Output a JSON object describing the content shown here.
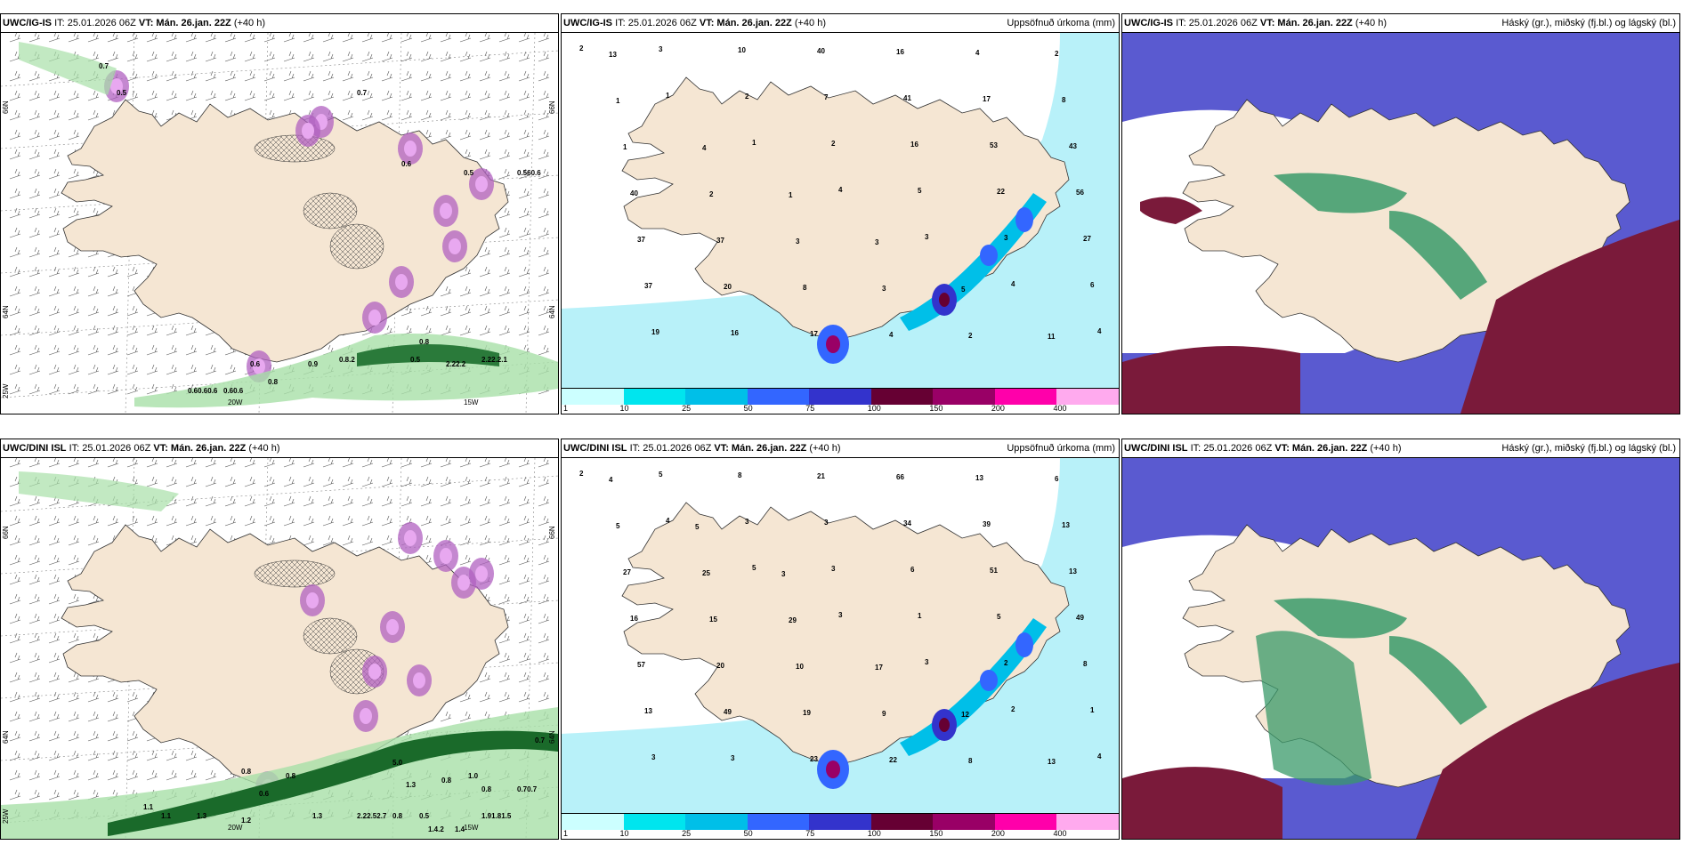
{
  "rows": [
    {
      "model": "UWC/IG-IS",
      "it": "IT: 25.01.2026 06Z",
      "vt": "VT: Mán. 26.jan. 22Z",
      "lead": "(+40 h)",
      "precip_title": "Uppsöfnuð úrkoma (mm)",
      "cloud_title": "Háský (gr.), miðský (fj.bl.) og lágský (bl.)",
      "lon_labels": [
        "20W",
        "15W"
      ],
      "lat_labels": [
        "66N",
        "64N",
        "25W",
        "66N",
        "64N"
      ],
      "wind_numbers": [
        "0.7",
        "0.5",
        "0.7",
        "0.6",
        "0.5",
        "0.60.6",
        "0.9",
        "0.8",
        "0.60.60.6",
        "0.8",
        "0.5",
        "2.22.2",
        "0.6",
        "2.22.2.1",
        "0.8.2",
        "0.560.6"
      ],
      "precip_numbers": [
        "2",
        "1",
        "1",
        "4",
        "3",
        "4",
        "4",
        "3",
        "2",
        "2",
        "5",
        "3",
        "6",
        "19",
        "10",
        "7",
        "16",
        "22",
        "27",
        "37",
        "16",
        "40",
        "41",
        "53",
        "56",
        "37",
        "20",
        "17",
        "16",
        "17",
        "43",
        "40",
        "37",
        "8",
        "4",
        "4",
        "8",
        "1",
        "2",
        "3",
        "3",
        "2",
        "2",
        "1",
        "4",
        "1",
        "3",
        "5",
        "11",
        "13"
      ]
    },
    {
      "model": "UWC/DINI ISL",
      "it": "IT: 25.01.2026 06Z",
      "vt": "VT: Mán. 26.jan. 22Z",
      "lead": "(+40 h)",
      "precip_title": "Uppsöfnuð úrkoma (mm)",
      "cloud_title": "Háský (gr.), miðský (fj.bl.) og lágský (bl.)",
      "lon_labels": [
        "20W",
        "15W"
      ],
      "lat_labels": [
        "66N",
        "64N",
        "25W",
        "66N",
        "64N"
      ],
      "wind_numbers": [
        "0.8",
        "0.6",
        "0.7",
        "5.0",
        "1.3",
        "1.1",
        "0.8",
        "0.8",
        "1.0",
        "0.8",
        "0.70.7",
        "1.1",
        "1.3",
        "1.2",
        "1.3",
        "2.22.52.7",
        "0.8",
        "0.5",
        "1.91.81.5",
        "1.4.2",
        "1.4"
      ],
      "precip_numbers": [
        "2",
        "4",
        "5",
        "3",
        "3",
        "2",
        "4",
        "5",
        "3",
        "3",
        "1",
        "2",
        "1",
        "3",
        "8",
        "3",
        "6",
        "5",
        "8",
        "13",
        "3",
        "21",
        "34",
        "51",
        "49",
        "57",
        "49",
        "23",
        "66",
        "39",
        "13",
        "16",
        "20",
        "19",
        "22",
        "13",
        "13",
        "27",
        "15",
        "10",
        "9",
        "8",
        "6",
        "5",
        "25",
        "29",
        "17",
        "12",
        "13",
        "4",
        "5",
        "3"
      ]
    }
  ],
  "legend": {
    "labels": [
      "1",
      "10",
      "25",
      "50",
      "75",
      "100",
      "150",
      "200",
      "400"
    ],
    "colors": [
      "#ccffff",
      "#00e5ee",
      "#00bfe8",
      "#3366ff",
      "#3333cc",
      "#660033",
      "#990066",
      "#ff00aa",
      "#ffaaee"
    ]
  },
  "colors": {
    "land": "#f5e6d3",
    "land_dark": "#dcc8b0",
    "sea": "#ffffff",
    "precip_light": "#b0f0f8",
    "cloud_high": "#5a5ad0",
    "cloud_mid": "#3a9a6a",
    "cloud_low": "#7a1a3a"
  }
}
